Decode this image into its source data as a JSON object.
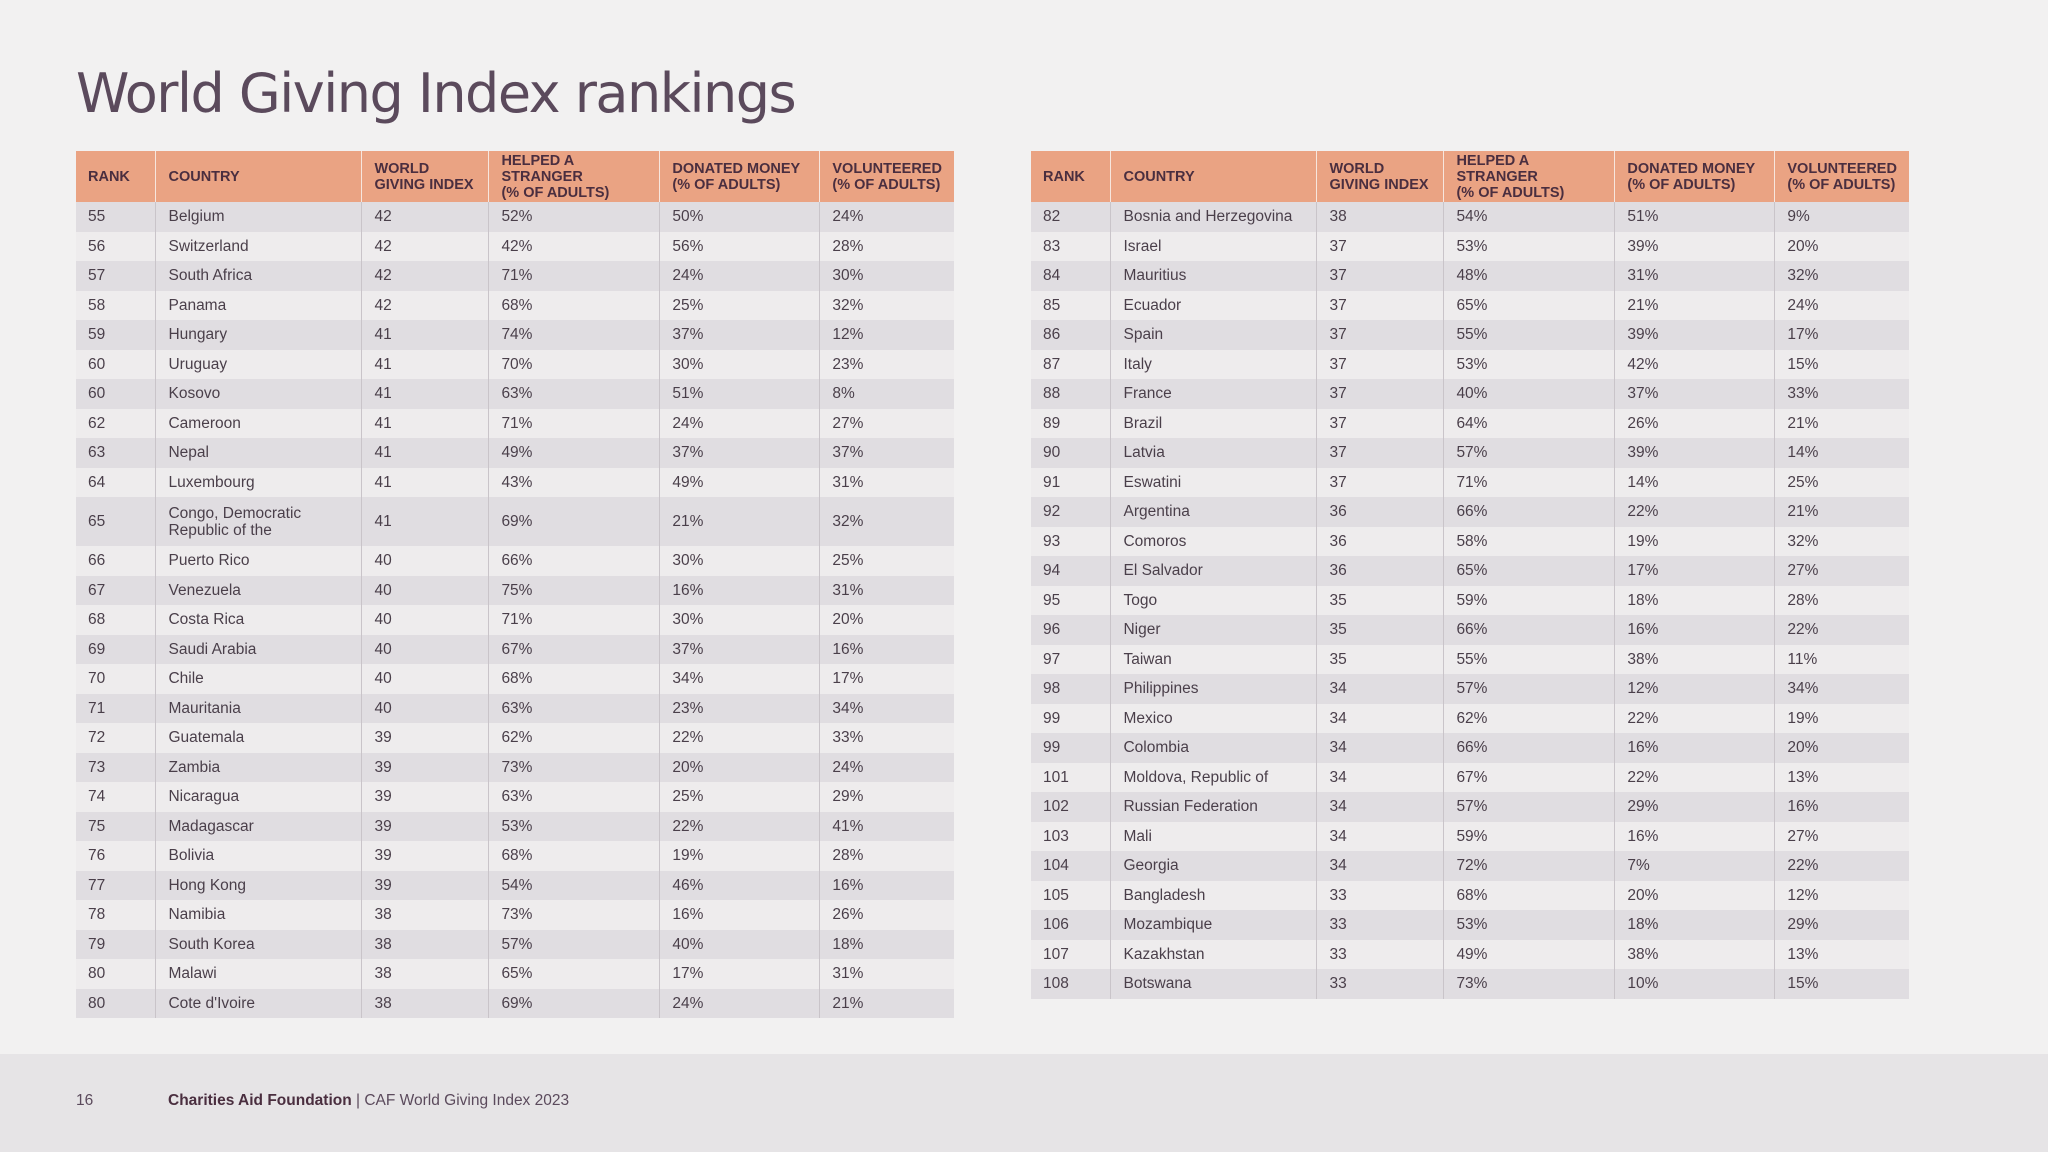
{
  "title": "World Giving Index rankings",
  "headers": {
    "rank": "RANK",
    "country": "COUNTRY",
    "wgi_1": "WORLD",
    "wgi_2": "GIVING INDEX",
    "help_1": "HELPED A STRANGER",
    "help_2": "(% OF ADULTS)",
    "don_1": "DONATED MONEY",
    "don_2": "(% OF ADULTS)",
    "vol_1": "VOLUNTEERED",
    "vol_2": "(% OF ADULTS)"
  },
  "left_rows": [
    [
      "55",
      "Belgium",
      "42",
      "52%",
      "50%",
      "24%"
    ],
    [
      "56",
      "Switzerland",
      "42",
      "42%",
      "56%",
      "28%"
    ],
    [
      "57",
      "South Africa",
      "42",
      "71%",
      "24%",
      "30%"
    ],
    [
      "58",
      "Panama",
      "42",
      "68%",
      "25%",
      "32%"
    ],
    [
      "59",
      "Hungary",
      "41",
      "74%",
      "37%",
      "12%"
    ],
    [
      "60",
      "Uruguay",
      "41",
      "70%",
      "30%",
      "23%"
    ],
    [
      "60",
      "Kosovo",
      "41",
      "63%",
      "51%",
      "8%"
    ],
    [
      "62",
      "Cameroon",
      "41",
      "71%",
      "24%",
      "27%"
    ],
    [
      "63",
      "Nepal",
      "41",
      "49%",
      "37%",
      "37%"
    ],
    [
      "64",
      "Luxembourg",
      "41",
      "43%",
      "49%",
      "31%"
    ],
    [
      "65",
      "Congo, Democratic Republic of the",
      "41",
      "69%",
      "21%",
      "32%"
    ],
    [
      "66",
      "Puerto Rico",
      "40",
      "66%",
      "30%",
      "25%"
    ],
    [
      "67",
      "Venezuela",
      "40",
      "75%",
      "16%",
      "31%"
    ],
    [
      "68",
      "Costa Rica",
      "40",
      "71%",
      "30%",
      "20%"
    ],
    [
      "69",
      "Saudi Arabia",
      "40",
      "67%",
      "37%",
      "16%"
    ],
    [
      "70",
      "Chile",
      "40",
      "68%",
      "34%",
      "17%"
    ],
    [
      "71",
      "Mauritania",
      "40",
      "63%",
      "23%",
      "34%"
    ],
    [
      "72",
      "Guatemala",
      "39",
      "62%",
      "22%",
      "33%"
    ],
    [
      "73",
      "Zambia",
      "39",
      "73%",
      "20%",
      "24%"
    ],
    [
      "74",
      "Nicaragua",
      "39",
      "63%",
      "25%",
      "29%"
    ],
    [
      "75",
      "Madagascar",
      "39",
      "53%",
      "22%",
      "41%"
    ],
    [
      "76",
      "Bolivia",
      "39",
      "68%",
      "19%",
      "28%"
    ],
    [
      "77",
      "Hong Kong",
      "39",
      "54%",
      "46%",
      "16%"
    ],
    [
      "78",
      "Namibia",
      "38",
      "73%",
      "16%",
      "26%"
    ],
    [
      "79",
      "South Korea",
      "38",
      "57%",
      "40%",
      "18%"
    ],
    [
      "80",
      "Malawi",
      "38",
      "65%",
      "17%",
      "31%"
    ],
    [
      "80",
      "Cote d'Ivoire",
      "38",
      "69%",
      "24%",
      "21%"
    ]
  ],
  "right_rows": [
    [
      "82",
      "Bosnia and Herzegovina",
      "38",
      "54%",
      "51%",
      "9%"
    ],
    [
      "83",
      "Israel",
      "37",
      "53%",
      "39%",
      "20%"
    ],
    [
      "84",
      "Mauritius",
      "37",
      "48%",
      "31%",
      "32%"
    ],
    [
      "85",
      "Ecuador",
      "37",
      "65%",
      "21%",
      "24%"
    ],
    [
      "86",
      "Spain",
      "37",
      "55%",
      "39%",
      "17%"
    ],
    [
      "87",
      "Italy",
      "37",
      "53%",
      "42%",
      "15%"
    ],
    [
      "88",
      "France",
      "37",
      "40%",
      "37%",
      "33%"
    ],
    [
      "89",
      "Brazil",
      "37",
      "64%",
      "26%",
      "21%"
    ],
    [
      "90",
      "Latvia",
      "37",
      "57%",
      "39%",
      "14%"
    ],
    [
      "91",
      "Eswatini",
      "37",
      "71%",
      "14%",
      "25%"
    ],
    [
      "92",
      "Argentina",
      "36",
      "66%",
      "22%",
      "21%"
    ],
    [
      "93",
      "Comoros",
      "36",
      "58%",
      "19%",
      "32%"
    ],
    [
      "94",
      "El Salvador",
      "36",
      "65%",
      "17%",
      "27%"
    ],
    [
      "95",
      "Togo",
      "35",
      "59%",
      "18%",
      "28%"
    ],
    [
      "96",
      "Niger",
      "35",
      "66%",
      "16%",
      "22%"
    ],
    [
      "97",
      "Taiwan",
      "35",
      "55%",
      "38%",
      "11%"
    ],
    [
      "98",
      "Philippines",
      "34",
      "57%",
      "12%",
      "34%"
    ],
    [
      "99",
      "Mexico",
      "34",
      "62%",
      "22%",
      "19%"
    ],
    [
      "99",
      "Colombia",
      "34",
      "66%",
      "16%",
      "20%"
    ],
    [
      "101",
      "Moldova, Republic of",
      "34",
      "67%",
      "22%",
      "13%"
    ],
    [
      "102",
      "Russian Federation",
      "34",
      "57%",
      "29%",
      "16%"
    ],
    [
      "103",
      "Mali",
      "34",
      "59%",
      "16%",
      "27%"
    ],
    [
      "104",
      "Georgia",
      "34",
      "72%",
      "7%",
      "22%"
    ],
    [
      "105",
      "Bangladesh",
      "33",
      "68%",
      "20%",
      "12%"
    ],
    [
      "106",
      "Mozambique",
      "33",
      "53%",
      "18%",
      "29%"
    ],
    [
      "107",
      "Kazakhstan",
      "33",
      "49%",
      "38%",
      "13%"
    ],
    [
      "108",
      "Botswana",
      "33",
      "73%",
      "10%",
      "15%"
    ]
  ],
  "footer": {
    "page_number": "16",
    "org": "Charities Aid Foundation",
    "separator": " | ",
    "publication": "CAF World Giving Index 2023"
  }
}
